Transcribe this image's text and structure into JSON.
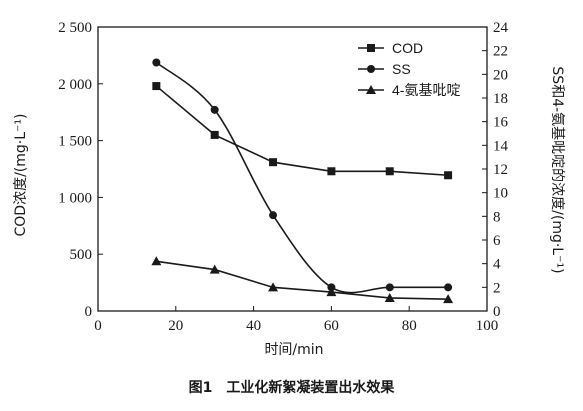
{
  "caption": {
    "number": "图1",
    "text": "工业化新絮凝装置出水效果"
  },
  "chart_data": {
    "type": "line",
    "xlabel": "时间/min",
    "ylabel_left": "COD浓度/(mg·L⁻¹)",
    "ylabel_right": "SS和4-氨基吡啶的浓度/(mg·L⁻¹)",
    "xlim": [
      0,
      100
    ],
    "ylim_left": [
      0,
      2500
    ],
    "ylim_right": [
      0,
      24
    ],
    "x_ticks": [
      "0",
      "20",
      "40",
      "60",
      "80",
      "100"
    ],
    "y_left_ticks": [
      "0",
      "500",
      "1 000",
      "1 500",
      "2 000",
      "2 500"
    ],
    "y_right_ticks": [
      "0",
      "2",
      "4",
      "6",
      "8",
      "10",
      "12",
      "14",
      "16",
      "18",
      "20",
      "22",
      "24"
    ],
    "grid": false,
    "legend_position": "top-right",
    "series": [
      {
        "name": "COD",
        "axis": "left",
        "marker": "square",
        "smooth": false,
        "x": [
          15,
          30,
          45,
          60,
          75,
          90
        ],
        "y": [
          1980,
          1550,
          1310,
          1230,
          1230,
          1195
        ]
      },
      {
        "name": "SS",
        "axis": "right",
        "marker": "circle",
        "smooth": true,
        "x": [
          15,
          30,
          45,
          60,
          75,
          90
        ],
        "y": [
          21.0,
          17.0,
          8.1,
          2.0,
          2.0,
          2.0
        ]
      },
      {
        "name": "4-氨基吡啶",
        "axis": "right",
        "marker": "triangle",
        "smooth": false,
        "x": [
          15,
          30,
          45,
          60,
          75,
          90
        ],
        "y": [
          4.2,
          3.5,
          2.0,
          1.6,
          1.1,
          1.0
        ]
      }
    ]
  }
}
